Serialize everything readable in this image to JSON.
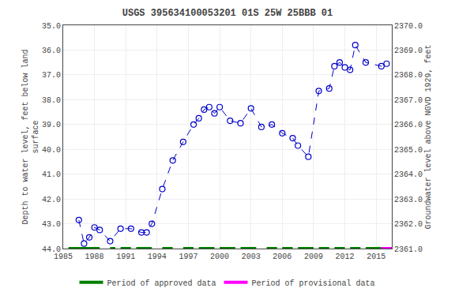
{
  "chart_data": {
    "type": "line",
    "title": "USGS 395634100053201 01S 25W 25BBB 01",
    "y_label": "Depth to water level, feet below land\nsurface",
    "y2_label": "Groundwater level above NGVD 1929, feet",
    "x": [
      1986.5,
      1987.0,
      1987.5,
      1988.0,
      1988.5,
      1989.5,
      1990.5,
      1991.5,
      1992.5,
      1993.0,
      1993.5,
      1994.5,
      1995.5,
      1996.5,
      1997.5,
      1998.0,
      1998.5,
      1999.0,
      1999.5,
      2000.0,
      2001.0,
      2002.0,
      2003.0,
      2004.0,
      2005.0,
      2006.0,
      2007.0,
      2007.5,
      2008.5,
      2009.5,
      2010.5,
      2011.0,
      2011.5,
      2012.0,
      2012.5,
      2013.0,
      2014.0,
      2015.5,
      2016.0
    ],
    "series": [
      {
        "color": "#0000cc",
        "line_style": "dashed",
        "marker": "open_circle",
        "values": [
          42.85,
          43.8,
          43.55,
          43.15,
          43.25,
          43.7,
          43.2,
          43.2,
          43.35,
          43.35,
          43.0,
          41.6,
          40.45,
          39.7,
          39.0,
          38.75,
          38.4,
          38.3,
          38.55,
          38.3,
          38.85,
          38.95,
          38.35,
          39.1,
          39.0,
          39.35,
          39.55,
          39.85,
          40.3,
          37.65,
          37.55,
          36.65,
          36.5,
          36.7,
          36.8,
          35.8,
          36.5,
          36.65,
          36.55
        ]
      },
      {
        "name": "Period of approved data",
        "type": "segments",
        "color": "#008000",
        "level": 44.0,
        "segments": [
          [
            1985.5,
            1988.5
          ],
          [
            1989.5,
            1990.0
          ],
          [
            1990.5,
            1991.5
          ],
          [
            1992.0,
            1993.5
          ],
          [
            1994.5,
            1995.5
          ],
          [
            1996.5,
            1997.5
          ],
          [
            1998.0,
            1999.5
          ],
          [
            2000.0,
            2001.5
          ],
          [
            2002.0,
            2003.5
          ],
          [
            2004.5,
            2005.5
          ],
          [
            2006.0,
            2007.0
          ],
          [
            2007.5,
            2009.0
          ],
          [
            2009.5,
            2010.5
          ],
          [
            2011.0,
            2012.0
          ],
          [
            2012.5,
            2013.5
          ],
          [
            2014.0,
            2015.5
          ]
        ]
      },
      {
        "name": "Period of provisional data",
        "type": "segments",
        "color": "#ff00ff",
        "level": 44.0,
        "segments": [
          [
            2015.5,
            2016.5
          ]
        ]
      }
    ],
    "xlim": [
      1985,
      2016.5
    ],
    "xticks": [
      1985,
      1988,
      1991,
      1994,
      1997,
      2000,
      2003,
      2006,
      2009,
      2012,
      2015
    ],
    "ylim": [
      44.0,
      35.0
    ],
    "yticks": [
      {
        "value": 35.0,
        "label": "35.0"
      },
      {
        "value": 36.0,
        "label": "36.0"
      },
      {
        "value": 37.0,
        "label": "37.0"
      },
      {
        "value": 38.0,
        "label": "38.0"
      },
      {
        "value": 39.0,
        "label": "39.0"
      },
      {
        "value": 40.0,
        "label": "40.0"
      },
      {
        "value": 41.0,
        "label": "41.0"
      },
      {
        "value": 42.0,
        "label": "42.0"
      },
      {
        "value": 43.0,
        "label": "43.0"
      },
      {
        "value": 44.0,
        "label": "44.0"
      }
    ],
    "y2lim": [
      2361.0,
      2370.0
    ],
    "y2ticks": [
      {
        "value": 2361.0,
        "label": "2361.0"
      },
      {
        "value": 2362.0,
        "label": "2362.0"
      },
      {
        "value": 2363.0,
        "label": "2363.0"
      },
      {
        "value": 2364.0,
        "label": "2364.0"
      },
      {
        "value": 2365.0,
        "label": "2365.0"
      },
      {
        "value": 2366.0,
        "label": "2366.0"
      },
      {
        "value": 2367.0,
        "label": "2367.0"
      },
      {
        "value": 2368.0,
        "label": "2368.0"
      },
      {
        "value": 2369.0,
        "label": "2369.0"
      },
      {
        "value": 2370.0,
        "label": "2370.0"
      }
    ],
    "grid": true,
    "legend": "bottom"
  }
}
